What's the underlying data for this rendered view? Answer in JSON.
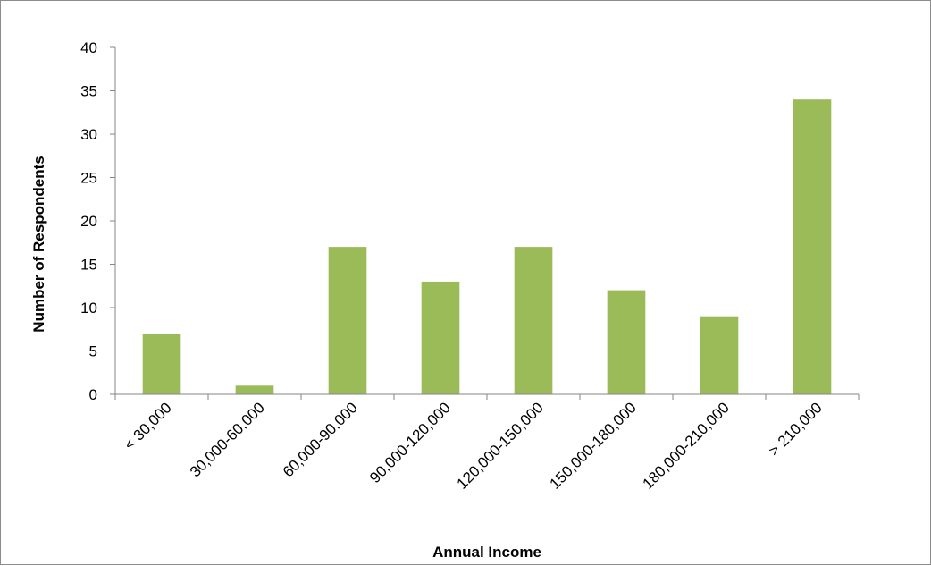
{
  "chart_data": {
    "type": "bar",
    "title": "",
    "xlabel": "Annual Income",
    "ylabel": "Number of Respondents",
    "categories": [
      "< 30,000",
      "30,000-60,000",
      "60,000-90,000",
      "90,000-120,000",
      "120,000-150,000",
      "150,000-180,000",
      "180,000-210,000",
      "> 210,000"
    ],
    "values": [
      7,
      1,
      17,
      13,
      17,
      12,
      9,
      34
    ],
    "ylim": [
      0,
      40
    ],
    "yticks": [
      0,
      5,
      10,
      15,
      20,
      25,
      30,
      35,
      40
    ],
    "grid": false,
    "legend": "none",
    "bar_color": "#9bbb59",
    "axis_color": "#868686"
  }
}
